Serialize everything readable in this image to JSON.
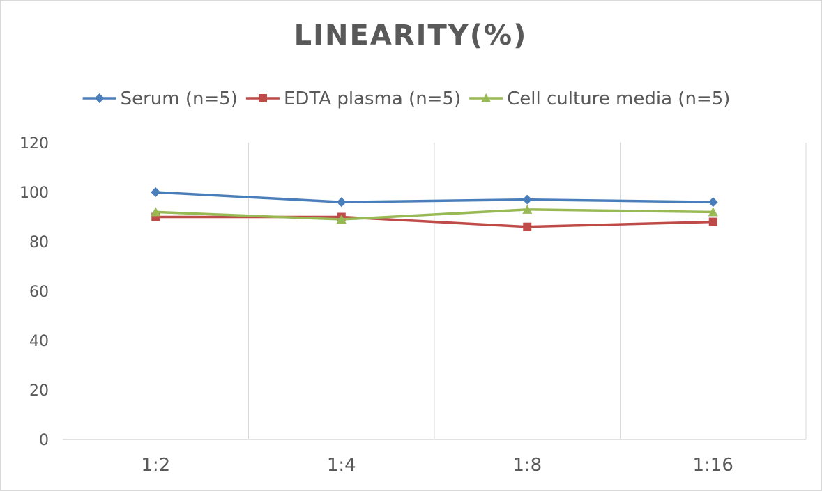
{
  "chart_data": {
    "type": "line",
    "title": "LINEARITY(%)",
    "xlabel": "",
    "ylabel": "",
    "categories": [
      "1:2",
      "1:4",
      "1:8",
      "1:16"
    ],
    "ylim": [
      0,
      120
    ],
    "yticks": [
      0,
      20,
      40,
      60,
      80,
      100,
      120
    ],
    "grid": "vertical",
    "legend": "top",
    "series": [
      {
        "name": "Serum (n=5)",
        "values": [
          100,
          96,
          97,
          96
        ],
        "color": "#4a7ebb",
        "marker": "diamond"
      },
      {
        "name": "EDTA plasma (n=5)",
        "values": [
          90,
          90,
          86,
          88
        ],
        "color": "#be4b48",
        "marker": "square"
      },
      {
        "name": "Cell culture media (n=5)",
        "values": [
          92,
          89,
          93,
          92
        ],
        "color": "#98b954",
        "marker": "triangle"
      }
    ]
  }
}
